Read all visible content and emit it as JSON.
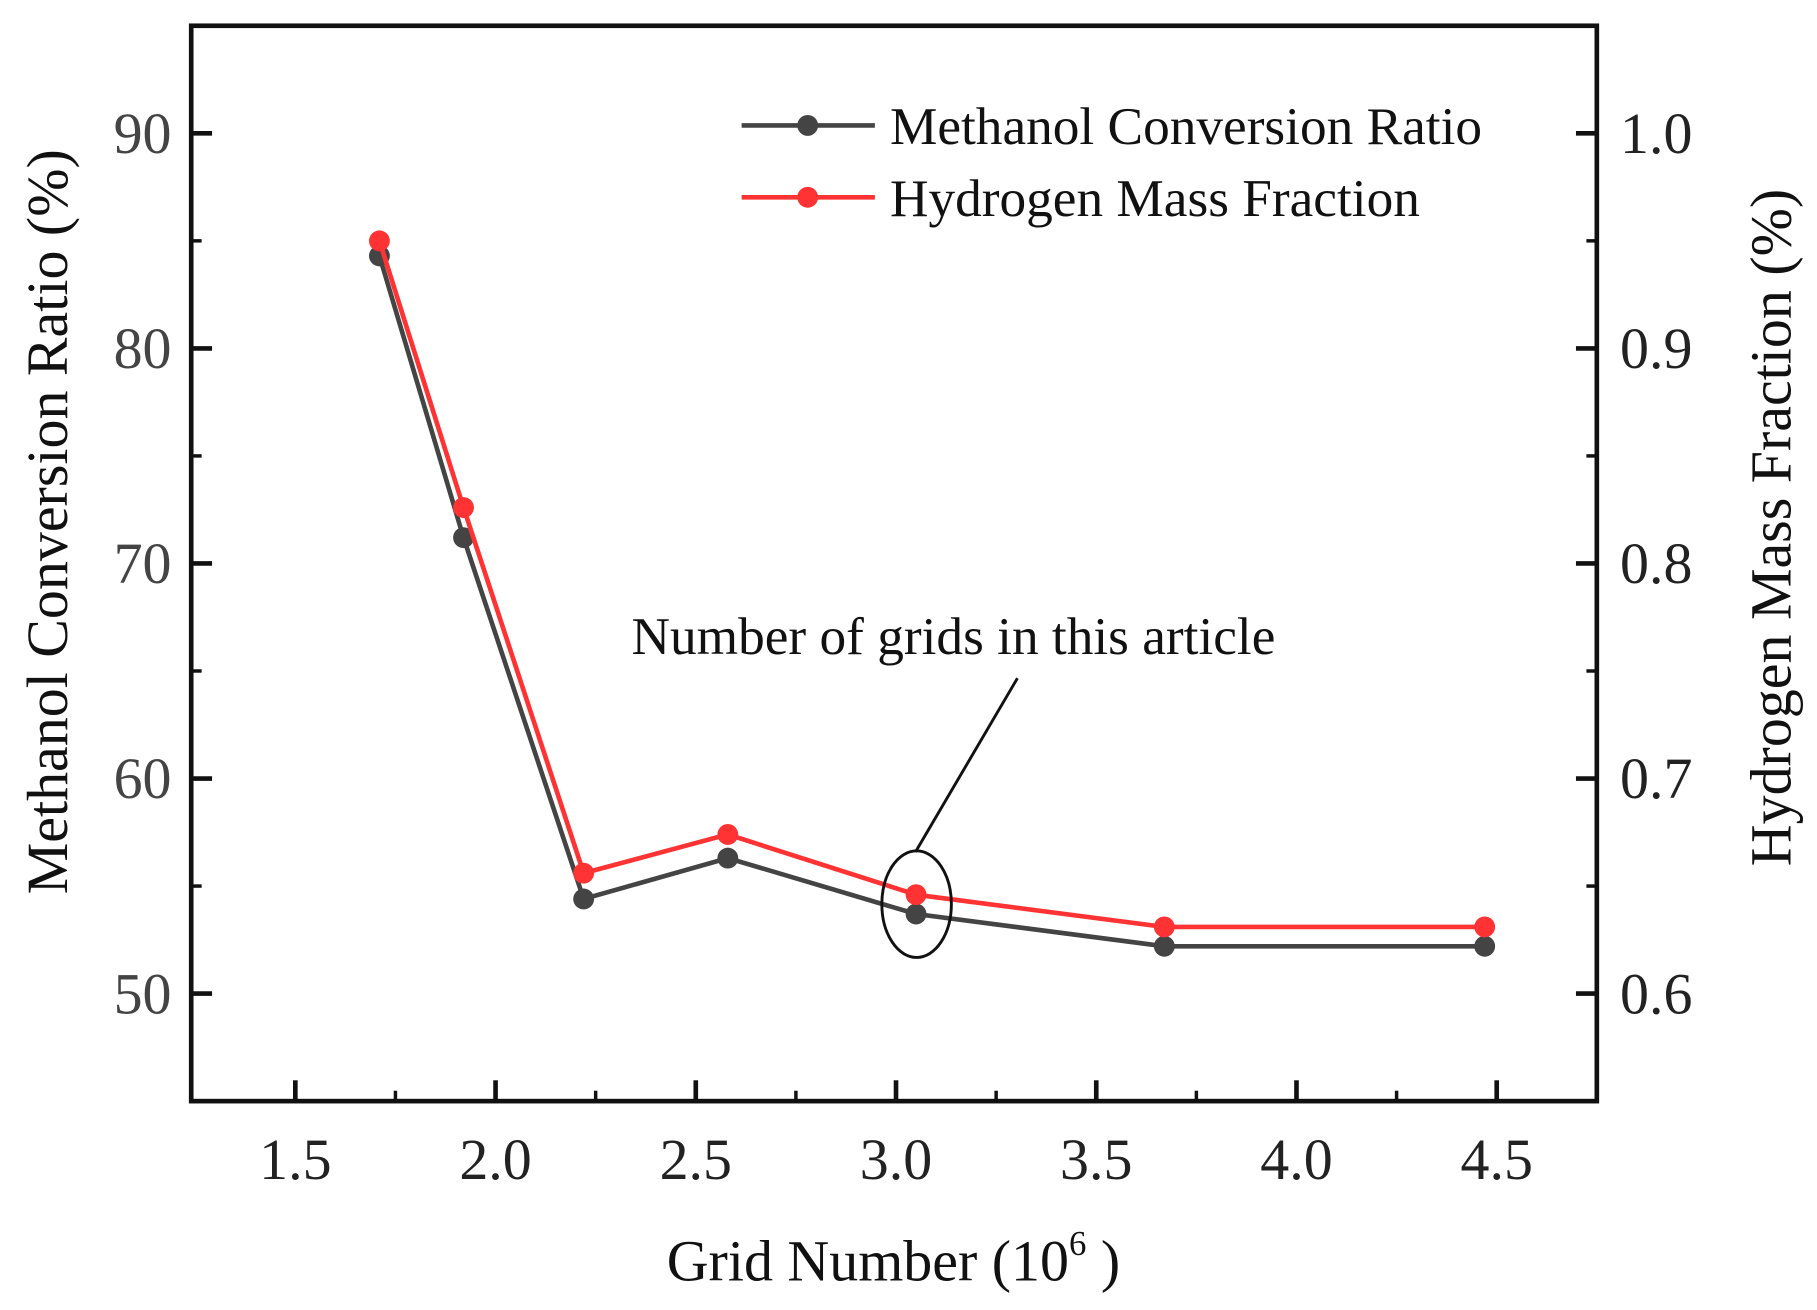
{
  "chart_data": {
    "type": "line",
    "xlabel": "Grid Number (10",
    "xlabel_sup": "6",
    "xlabel_close": " )",
    "ylabel": "Methanol Conversion Ratio (%)",
    "y2label": "Hydrogen Mass Fraction (%)",
    "xlim": [
      1.24,
      4.75
    ],
    "ylim": [
      45,
      95
    ],
    "y2lim": [
      0.55,
      1.05
    ],
    "grid": false,
    "legend_position": "top-right",
    "x_ticks": [
      "1.5",
      "2.0",
      "2.5",
      "3.0",
      "3.5",
      "4.0",
      "4.5"
    ],
    "y_ticks": [
      "50",
      "60",
      "70",
      "80",
      "90"
    ],
    "y2_ticks": [
      "0.6",
      "0.7",
      "0.8",
      "0.9",
      "1.0"
    ],
    "x": [
      1.71,
      1.92,
      2.22,
      2.58,
      3.05,
      3.67,
      4.47
    ],
    "series": [
      {
        "name": "Methanol Conversion Ratio",
        "axis": "left",
        "color": "#444444",
        "values": [
          84.3,
          71.2,
          54.4,
          56.3,
          53.7,
          52.2,
          52.2
        ]
      },
      {
        "name": "Hydrogen Mass Fraction",
        "axis": "right",
        "color": "#ff3333",
        "values": [
          0.95,
          0.826,
          0.656,
          0.674,
          0.646,
          0.631,
          0.631
        ]
      }
    ],
    "annotation": {
      "text": "Number of grids in this article",
      "x": 3.05
    }
  }
}
